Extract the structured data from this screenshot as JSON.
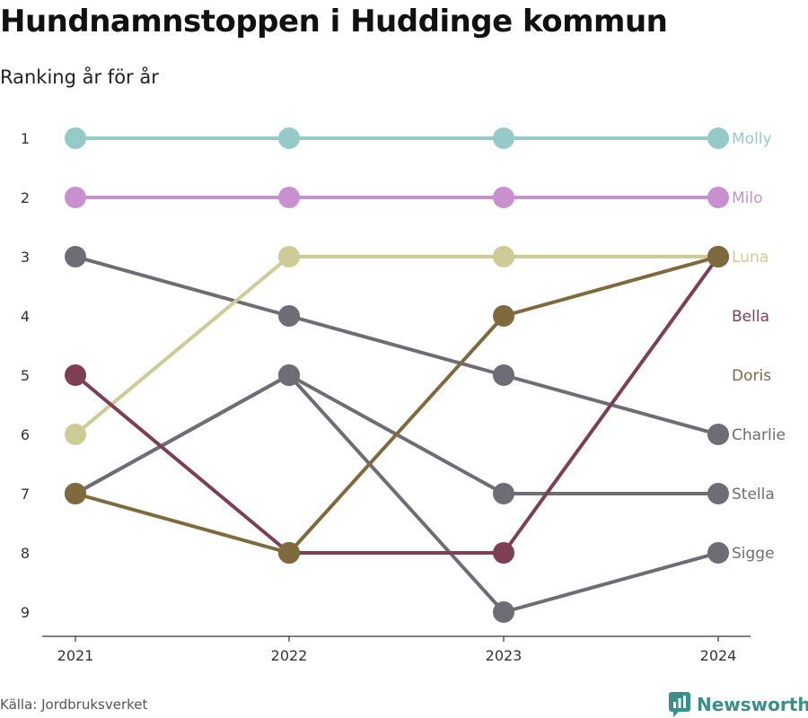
{
  "title": "Hundnamnstoppen i Huddinge kommun",
  "subtitle": "Ranking år för år",
  "source": "Källa: Jordbruksverket",
  "brand": "Newsworthy",
  "brand_color": "#3a8f8a",
  "chart_data": {
    "type": "line",
    "x": [
      "2021",
      "2022",
      "2023",
      "2024"
    ],
    "y_ticks": [
      "1",
      "2",
      "3",
      "4",
      "5",
      "6",
      "7",
      "8",
      "9"
    ],
    "ylim": [
      1,
      9
    ],
    "y_reversed": true,
    "grid": false,
    "legend": "labels at right end of lines",
    "series": [
      {
        "name": "Molly",
        "color": "#95cac9",
        "values": [
          1,
          1,
          1,
          1
        ]
      },
      {
        "name": "Milo",
        "color": "#c990cf",
        "values": [
          2,
          2,
          2,
          2
        ]
      },
      {
        "name": "Luna",
        "color": "#cdcc97",
        "values": [
          6,
          3,
          3,
          3
        ]
      },
      {
        "name": "Bella",
        "color": "#7c3f54",
        "values": [
          5,
          8,
          8,
          3
        ]
      },
      {
        "name": "Doris",
        "color": "#7f6a3e",
        "values": [
          7,
          8,
          4,
          3
        ]
      },
      {
        "name": "Charlie",
        "color": "#6e6d75",
        "values": [
          3,
          4,
          5,
          6
        ]
      },
      {
        "name": "Stella",
        "color": "#6e6d75",
        "values": [
          7,
          5,
          7,
          7
        ]
      },
      {
        "name": "Sigge",
        "color": "#6e6d75",
        "values": [
          7,
          5,
          9,
          8
        ]
      }
    ]
  }
}
